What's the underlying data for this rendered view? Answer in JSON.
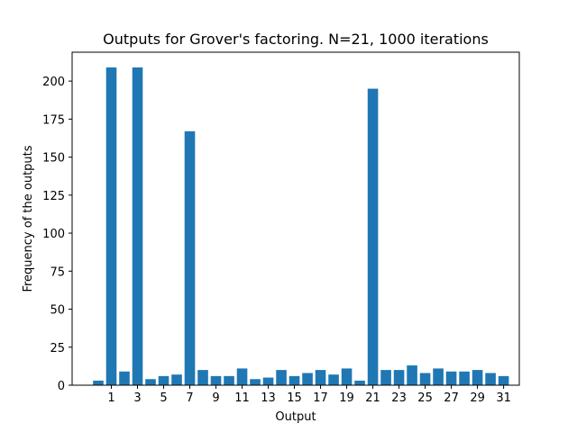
{
  "chart_data": {
    "type": "bar",
    "title": "Outputs for Grover's factoring. N=21, 1000 iterations",
    "xlabel": "Output",
    "ylabel": "Frequency of the outputs",
    "categories": [
      0,
      1,
      2,
      3,
      4,
      5,
      6,
      7,
      8,
      9,
      10,
      11,
      12,
      13,
      14,
      15,
      16,
      17,
      18,
      19,
      20,
      21,
      22,
      23,
      24,
      25,
      26,
      27,
      28,
      29,
      30,
      31
    ],
    "values": [
      3,
      209,
      9,
      209,
      4,
      6,
      7,
      167,
      10,
      6,
      6,
      11,
      4,
      5,
      10,
      6,
      8,
      10,
      7,
      11,
      3,
      195,
      10,
      10,
      13,
      8,
      11,
      9,
      9,
      10,
      8,
      6
    ],
    "xticks": [
      1,
      3,
      5,
      7,
      9,
      11,
      13,
      15,
      17,
      19,
      21,
      23,
      25,
      27,
      29,
      31
    ],
    "yticks": [
      0,
      25,
      50,
      75,
      100,
      125,
      150,
      175,
      200
    ],
    "xlim": [
      -2.0,
      32.2
    ],
    "ylim": [
      0,
      219
    ],
    "grid": false,
    "bar_color": "#1f77b4"
  }
}
